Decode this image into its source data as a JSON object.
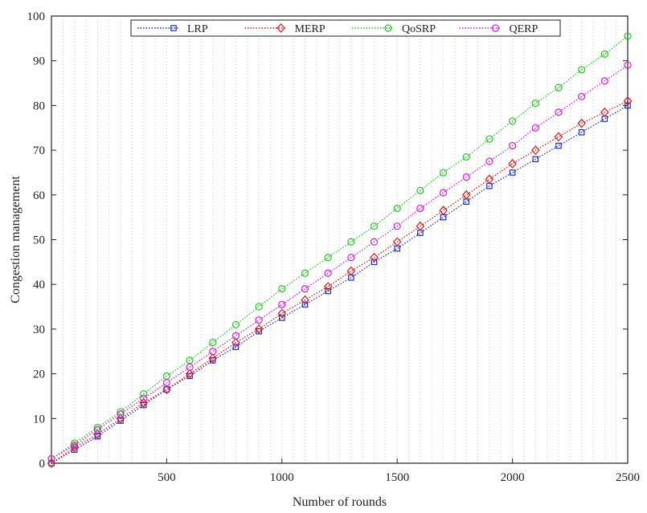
{
  "chart_data": {
    "type": "line",
    "title": "",
    "xlabel": "Number of rounds",
    "ylabel": "Congestion management",
    "xlim": [
      0,
      2500
    ],
    "ylim": [
      0,
      100
    ],
    "xticks": [
      500,
      1000,
      1500,
      2000,
      2500
    ],
    "yticks": [
      0,
      10,
      20,
      30,
      40,
      50,
      60,
      70,
      80,
      90,
      100
    ],
    "grid": "vertical dotted",
    "legend_position": "top-center",
    "x": [
      0,
      100,
      200,
      300,
      400,
      500,
      600,
      700,
      800,
      900,
      1000,
      1100,
      1200,
      1300,
      1400,
      1500,
      1600,
      1700,
      1800,
      1900,
      2000,
      2100,
      2200,
      2300,
      2400,
      2500
    ],
    "series": [
      {
        "name": "LRP",
        "color": "#1f2fd6",
        "marker": "square",
        "values": [
          0,
          3,
          6,
          9.5,
          13,
          16.5,
          19.5,
          23,
          26,
          29.5,
          32.5,
          35.5,
          38.5,
          41.5,
          45,
          48,
          51.5,
          55,
          58.5,
          62,
          65,
          68,
          71,
          74,
          77,
          80
        ]
      },
      {
        "name": "MERP",
        "color": "#e01a1a",
        "marker": "diamond",
        "values": [
          0,
          3.5,
          6.5,
          10,
          13.5,
          16.5,
          20,
          23.5,
          27,
          30,
          33.5,
          36.5,
          39.5,
          43,
          46,
          49.5,
          53,
          56.5,
          60,
          63.5,
          67,
          70,
          73,
          76,
          78.5,
          81
        ]
      },
      {
        "name": "QoSRP",
        "color": "#1fcc1f",
        "marker": "circle",
        "values": [
          1,
          4.5,
          8,
          11.5,
          15.5,
          19.5,
          23,
          27,
          31,
          35,
          39,
          42.5,
          46,
          49.5,
          53,
          57,
          61,
          65,
          68.5,
          72.5,
          76.5,
          80.5,
          84,
          88,
          91.5,
          95.5
        ]
      },
      {
        "name": "QERP",
        "color": "#e01ae0",
        "marker": "circle",
        "values": [
          1,
          4,
          7.5,
          11,
          14.5,
          18,
          21.5,
          25,
          28.5,
          32,
          35.5,
          39,
          42.5,
          46,
          49.5,
          53,
          57,
          60.5,
          64,
          67.5,
          71,
          75,
          78.5,
          82,
          85.5,
          89
        ]
      }
    ]
  }
}
